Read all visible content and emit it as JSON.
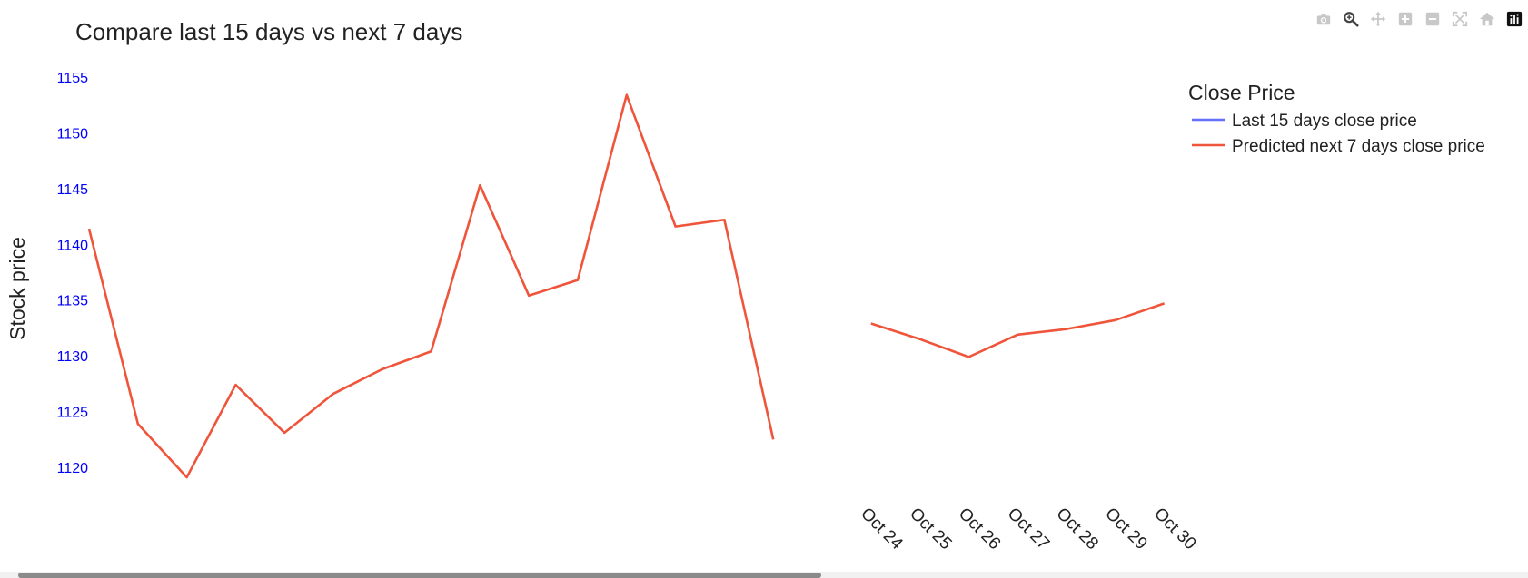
{
  "toolbar": {
    "buttons": [
      {
        "icon": "camera-icon",
        "title": "Download plot as a png"
      },
      {
        "icon": "zoom-icon",
        "title": "Zoom"
      },
      {
        "icon": "pan-icon",
        "title": "Pan"
      },
      {
        "icon": "zoom-in-icon",
        "title": "Zoom in"
      },
      {
        "icon": "zoom-out-icon",
        "title": "Zoom out"
      },
      {
        "icon": "autoscale-icon",
        "title": "Autoscale"
      },
      {
        "icon": "home-icon",
        "title": "Reset axes"
      },
      {
        "icon": "plotly-logo-icon",
        "title": "Produced with Plotly"
      }
    ],
    "active_button": "zoom-icon"
  },
  "chart_data": {
    "type": "line",
    "title": "Compare last 15 days vs next 7 days",
    "ylabel": "Stock price",
    "xlabel": "",
    "ylim": [
      1116,
      1156
    ],
    "y_ticks": [
      1120,
      1125,
      1130,
      1135,
      1140,
      1145,
      1150,
      1155
    ],
    "y_tick_color": "#0000ff",
    "x_tick_labels": [
      "Oct 24",
      "Oct 25",
      "Oct 26",
      "Oct 27",
      "Oct 28",
      "Oct 29",
      "Oct 30"
    ],
    "x_tick_index": [
      16,
      17,
      18,
      19,
      20,
      21,
      22
    ],
    "legend": {
      "title": "Close Price",
      "placement": "top-right",
      "entries": [
        {
          "name": "Last 15 days close price",
          "color": "#636efa"
        },
        {
          "name": "Predicted next 7 days close price",
          "color": "#ef553b"
        }
      ]
    },
    "series": [
      {
        "name": "Predicted next 7 days close price",
        "color": "#ef553b",
        "x_index": [
          0,
          1,
          2,
          3,
          4,
          5,
          6,
          7,
          8,
          9,
          10,
          11,
          12,
          13,
          14,
          15,
          16,
          17,
          18,
          19,
          20,
          21,
          22
        ],
        "values": [
          1141.4,
          1123.9,
          1119.1,
          1127.4,
          1123.1,
          1126.6,
          1128.8,
          1130.4,
          1145.3,
          1135.4,
          1136.8,
          1153.4,
          1141.6,
          1142.2,
          1122.5,
          null,
          1132.9,
          1131.5,
          1129.9,
          1131.9,
          1132.4,
          1133.2,
          1134.7
        ]
      }
    ]
  }
}
